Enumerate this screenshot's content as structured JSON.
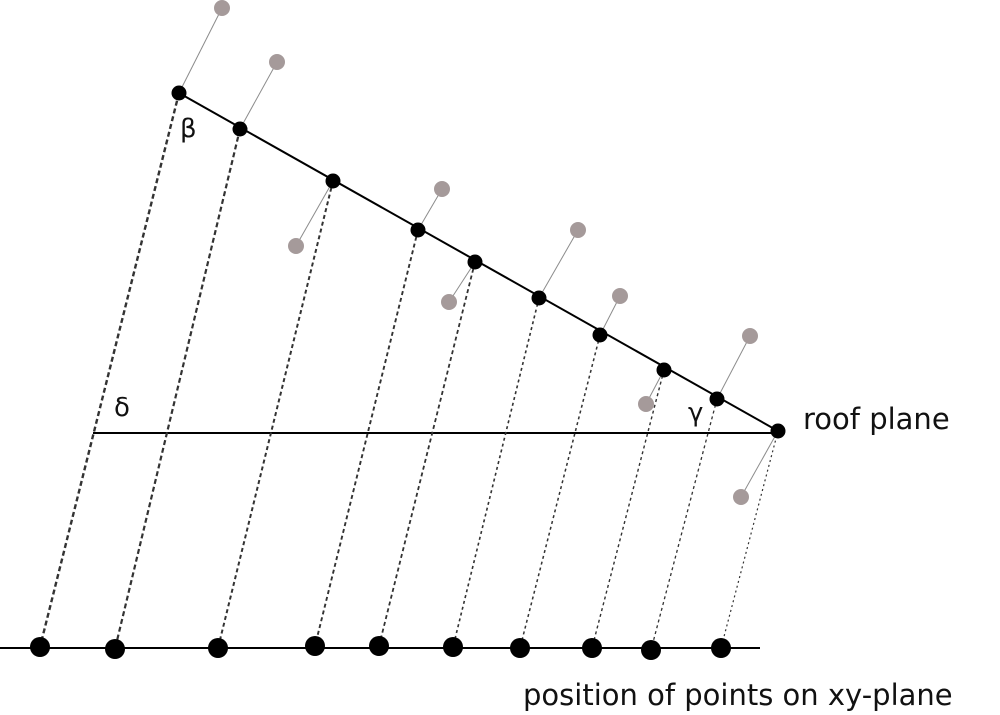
{
  "labels": {
    "beta": "β",
    "delta": "δ",
    "gamma": "γ",
    "roof_plane": "roof plane",
    "xy_plane": "position of points on xy-plane"
  },
  "colors": {
    "line": "#000000",
    "point": "#000000",
    "raw_point": "#a59a9a",
    "offset_line": "#8c8c8c"
  }
}
